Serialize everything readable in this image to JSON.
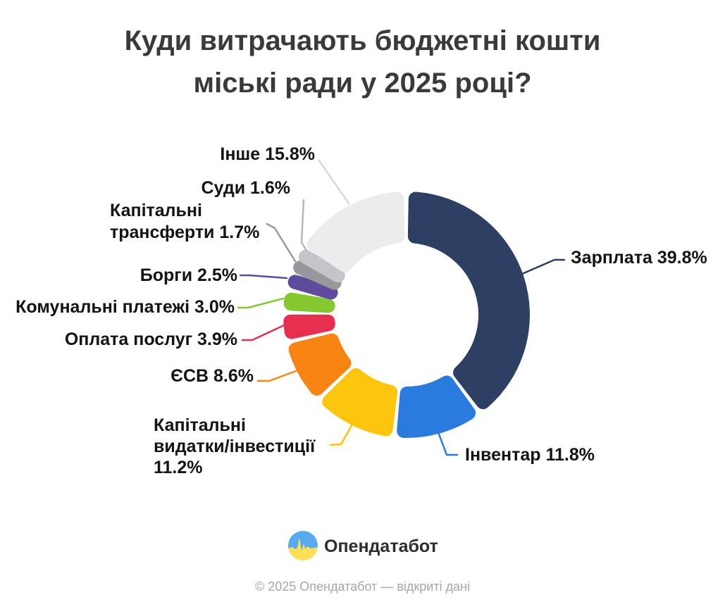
{
  "title": {
    "lines": [
      "Куди витрачають бюджетні кошти",
      "міські ради у 2025 році?"
    ]
  },
  "chart_data": {
    "type": "pie",
    "subtype": "donut",
    "title": "Куди витрачають бюджетні кошти міські ради у 2025 році?",
    "unit": "%",
    "start_angle_deg": 0,
    "direction": "clockwise",
    "legend_position": "callout-labels",
    "slices": [
      {
        "key": "zarplata",
        "label": "Зарплата",
        "value": 39.8,
        "display": "Зарплата 39.8%",
        "color": "#2d3f63"
      },
      {
        "key": "inventar",
        "label": "Інвентар",
        "value": 11.8,
        "display": "Інвентар 11.8%",
        "color": "#2b7bde"
      },
      {
        "key": "kap_vydatky",
        "label": "Капітальні видатки/інвестиції",
        "value": 11.2,
        "display": "Капітальні видатки/інвестиції 11.2%",
        "color": "#fcc40d"
      },
      {
        "key": "esv",
        "label": "ЄСВ",
        "value": 8.6,
        "display": "ЄСВ 8.6%",
        "color": "#f78413"
      },
      {
        "key": "oplata",
        "label": "Оплата послуг",
        "value": 3.9,
        "display": "Оплата послуг 3.9%",
        "color": "#e62e4e"
      },
      {
        "key": "komunalni",
        "label": "Комунальні платежі",
        "value": 3.0,
        "display": "Комунальні платежі 3.0%",
        "color": "#85c72f"
      },
      {
        "key": "borhy",
        "label": "Борги",
        "value": 2.5,
        "display": "Борги 2.5%",
        "color": "#5f4b9e"
      },
      {
        "key": "kap_transferty",
        "label": "Капітальні трансферти",
        "value": 1.7,
        "display": "Капітальні трансферти 1.7%",
        "color": "#98989c"
      },
      {
        "key": "sudy",
        "label": "Суди",
        "value": 1.6,
        "display": "Суди 1.6%",
        "color": "#c5c5c9"
      },
      {
        "key": "inshe",
        "label": "Інше",
        "value": 15.8,
        "display": "Інше 15.8%",
        "color": "#ececec"
      }
    ]
  },
  "callouts": {
    "zarplata": "Зарплата 39.8%",
    "inventar": "Інвентар 11.8%",
    "kap_vydatky": [
      "Капітальні",
      "видатки/інвестиції",
      "11.2%"
    ],
    "esv": "ЄСВ 8.6%",
    "oplata": "Оплата послуг 3.9%",
    "komunalni": "Комунальні платежі 3.0%",
    "borhy": "Борги 2.5%",
    "kap_transferty": [
      "Капітальні",
      "трансферти 1.7%"
    ],
    "sudy": "Суди 1.6%",
    "inshe": "Інше 15.8%"
  },
  "footer": {
    "brand": "Опендатабот",
    "copyright": "© 2025 Опендатабот — відкриті дані"
  },
  "brand_colors": {
    "logo_blue": "#57a9f0",
    "logo_yellow": "#ffdf55"
  }
}
